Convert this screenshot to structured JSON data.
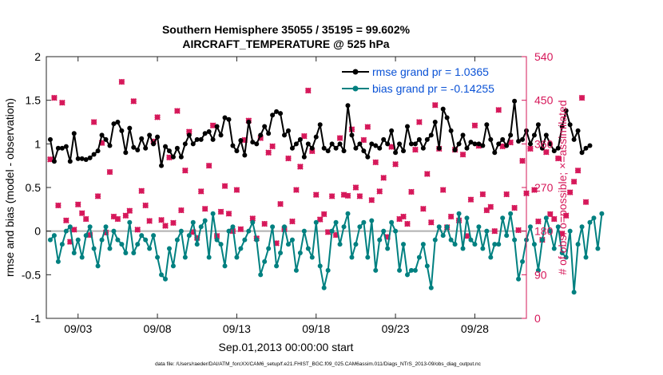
{
  "chart_data": {
    "type": "line",
    "title_line1": "Southern Hemisphere 35055 / 35195 = 99.602%",
    "title_line2": "AIRCRAFT_TEMPERATURE @ 525 hPa",
    "xlabel": "Sep.01,2013 00:00:00 start",
    "ylabel_left": "rmse and bias (model - observation)",
    "ylabel_right": "# of obs: o=possible; ×=assimilated",
    "footer": "data file: /Users/raeder/DAI/ATM_forcXX/CAM6_setup/f.e21.FHIST_BGC.f09_025.CAM6assim.011/Diags_NTrS_2013-09/obs_diag_output.nc",
    "xlim": [
      1.0,
      31.25
    ],
    "ylim_left": [
      -1,
      2
    ],
    "ylim_right": [
      0,
      540
    ],
    "x_ticks": [
      3,
      8,
      13,
      18,
      23,
      28
    ],
    "x_tick_labels": [
      "09/03",
      "09/08",
      "09/13",
      "09/18",
      "09/23",
      "09/28"
    ],
    "y_left_ticks": [
      -1,
      -0.5,
      0,
      0.5,
      1,
      1.5,
      2
    ],
    "y_left_tick_labels": [
      "-1",
      "-0.5",
      "0",
      "0.5",
      "1",
      "1.5",
      "2"
    ],
    "y_right_ticks": [
      0,
      90,
      180,
      270,
      360,
      450,
      540
    ],
    "y_right_tick_labels": [
      "0",
      "90",
      "180",
      "270",
      "360",
      "450",
      "540"
    ],
    "zero_line": 0,
    "legend": [
      {
        "label": "rmse grand pr = 1.0365",
        "color": "#000000"
      },
      {
        "label": "bias grand pr = -0.14255",
        "color": "#008080"
      }
    ],
    "colors": {
      "rmse": "#000000",
      "bias": "#008080",
      "obs": "#d6185a",
      "zero_line": "#b0b0b0",
      "legend_text": "#0a52d6"
    },
    "x_start": 1.25,
    "x_step": 0.25,
    "series": [
      {
        "name": "rmse",
        "axis": "left",
        "values": [
          1.05,
          0.8,
          0.95,
          0.95,
          0.97,
          0.8,
          1.12,
          0.83,
          0.83,
          0.82,
          0.84,
          0.88,
          0.92,
          1.1,
          1.05,
          0.98,
          1.23,
          1.25,
          1.15,
          0.9,
          1.18,
          0.96,
          0.93,
          1.06,
          0.95,
          1.1,
          1.0,
          1.08,
          0.75,
          0.97,
          0.92,
          0.85,
          0.95,
          0.85,
          1.0,
          1.1,
          1.0,
          1.05,
          1.05,
          1.12,
          1.14,
          1.05,
          1.2,
          1.1,
          1.3,
          1.28,
          0.98,
          0.92,
          1.04,
          0.87,
          1.25,
          1.02,
          1.0,
          1.1,
          1.2,
          1.12,
          1.33,
          1.37,
          1.35,
          1.1,
          1.15,
          0.95,
          1.0,
          1.05,
          0.85,
          1.0,
          0.95,
          1.08,
          1.22,
          0.95,
          0.92,
          1.0,
          0.95,
          1.0,
          0.92,
          1.44,
          1.1,
          0.95,
          1.0,
          0.92,
          0.85,
          1.0,
          0.98,
          0.95,
          1.05,
          1.0,
          1.15,
          0.9,
          1.0,
          0.92,
          1.2,
          1.0,
          1.0,
          1.05,
          0.95,
          1.05,
          1.1,
          1.25,
          0.95,
          1.4,
          1.3,
          1.15,
          0.93,
          1.0,
          1.1,
          0.95,
          1.02,
          1.0,
          1.0,
          0.98,
          1.22,
          1.05,
          0.9,
          1.0,
          1.05,
          0.98,
          1.1,
          1.49,
          1.03,
          1.05,
          1.15,
          1.0,
          1.1,
          1.22,
          0.95,
          1.1,
          1.0,
          0.92,
          0.95,
          1.2,
          1.38,
          1.22,
          1.05,
          1.15,
          0.9,
          0.95,
          0.98
        ]
      },
      {
        "name": "bias",
        "axis": "left",
        "values": [
          -0.1,
          -0.05,
          -0.35,
          -0.15,
          0.0,
          0.05,
          -0.25,
          -0.1,
          -0.3,
          -0.05,
          0.05,
          -0.2,
          -0.4,
          -0.1,
          0.05,
          -0.2,
          0.0,
          -0.1,
          -0.15,
          -0.25,
          0.1,
          -0.25,
          -0.15,
          -0.05,
          -0.1,
          -0.2,
          -0.05,
          -0.3,
          -0.5,
          -0.55,
          -0.2,
          -0.4,
          -0.1,
          0.0,
          -0.3,
          -0.05,
          0.1,
          -0.15,
          0.05,
          0.12,
          -0.3,
          0.2,
          -0.1,
          -0.15,
          -0.4,
          0.0,
          0.05,
          -0.3,
          -0.2,
          -0.1,
          0.0,
          0.1,
          -0.1,
          -0.5,
          -0.35,
          -0.2,
          0.05,
          -0.4,
          -0.25,
          0.05,
          -0.15,
          -0.1,
          -0.45,
          -0.25,
          0.0,
          -0.2,
          -0.3,
          0.1,
          -0.4,
          -0.65,
          -0.45,
          0.0,
          0.1,
          -0.15,
          0.05,
          0.2,
          -0.3,
          -0.15,
          0.05,
          0.1,
          -0.3,
          0.12,
          -0.45,
          -0.1,
          0.0,
          -0.2,
          0.1,
          0.0,
          -0.45,
          -0.15,
          -0.5,
          -0.45,
          -0.45,
          -0.3,
          -0.15,
          -0.4,
          -0.65,
          -0.1,
          0.05,
          -0.05,
          0.05,
          -0.1,
          -0.15,
          0.2,
          -0.2,
          0.15,
          -0.1,
          -0.15,
          0.05,
          -0.2,
          0.0,
          -0.3,
          -0.15,
          -0.15,
          0.15,
          -0.05,
          0.2,
          -0.1,
          -0.55,
          -0.35,
          -0.1,
          0.05,
          -0.15,
          -0.45,
          -0.1,
          0.15,
          0.0,
          -0.2,
          0.05,
          -0.25,
          -0.3,
          0.0,
          -0.7,
          -0.15,
          0.05,
          -0.3,
          0.1,
          0.15,
          -0.2,
          0.2
        ]
      },
      {
        "name": "obs_possible",
        "axis": "right",
        "marker": "o",
        "values": [
          328,
          455,
          233,
          445,
          202,
          158,
          183,
          235,
          217,
          205,
          172,
          405,
          252,
          362,
          177,
          302,
          210,
          205,
          488,
          212,
          222,
          448,
          183,
          263,
          233,
          201,
          365,
          415,
          203,
          191,
          332,
          197,
          428,
          223,
          305,
          385,
          178,
          166,
          262,
          226,
          315,
          398,
          170,
          220,
          273,
          216,
          180,
          265,
          184,
          368,
          408,
          206,
          165,
          372,
          195,
          342,
          355,
          155,
          236,
          184,
          330,
          200,
          265,
          313,
          376,
          470,
          345,
          255,
          204,
          215,
          178,
          252,
          172,
          372,
          255,
          253,
          390,
          270,
          252,
          368,
          395,
          244,
          322,
          262,
          290,
          168,
          354,
          318,
          205,
          210,
          195,
          261,
          348,
          405,
          226,
          298,
          198,
          440,
          350,
          265,
          188,
          210,
          348,
          202,
          338,
          170,
          245,
          398,
          356,
          256,
          223,
          230,
          180,
          430,
          355,
          256,
          363,
          228,
          182,
          325,
          258,
          350,
          265,
          200,
          162,
          343,
          215,
          205,
          330,
          175,
          212,
          260,
          282,
          305,
          455,
          240
        ]
      },
      {
        "name": "obs_assimilated",
        "axis": "right",
        "marker": "x",
        "values": [
          328,
          455,
          233,
          445,
          202,
          158,
          183,
          235,
          217,
          205,
          172,
          405,
          252,
          362,
          177,
          302,
          210,
          205,
          488,
          212,
          222,
          448,
          183,
          263,
          233,
          201,
          365,
          415,
          203,
          191,
          332,
          197,
          428,
          223,
          305,
          385,
          178,
          166,
          262,
          226,
          315,
          398,
          170,
          220,
          273,
          216,
          180,
          265,
          184,
          368,
          408,
          206,
          165,
          372,
          195,
          342,
          355,
          155,
          236,
          184,
          330,
          200,
          265,
          313,
          376,
          470,
          345,
          255,
          204,
          215,
          178,
          252,
          172,
          372,
          255,
          253,
          390,
          270,
          252,
          368,
          395,
          244,
          322,
          262,
          290,
          168,
          354,
          318,
          205,
          210,
          195,
          261,
          348,
          405,
          226,
          298,
          198,
          440,
          350,
          265,
          188,
          210,
          348,
          202,
          338,
          170,
          245,
          398,
          356,
          256,
          223,
          230,
          180,
          430,
          355,
          256,
          363,
          228,
          182,
          325,
          258,
          350,
          265,
          200,
          162,
          343,
          215,
          205,
          330,
          175,
          212,
          260,
          282,
          305,
          455,
          240
        ]
      }
    ]
  }
}
